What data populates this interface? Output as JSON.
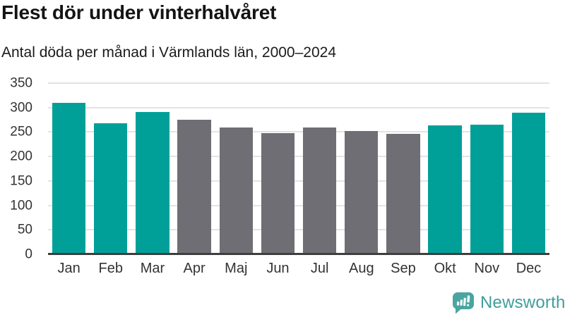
{
  "header": {
    "title": "Flest dör under vinterhalvåret",
    "subtitle": "Antal döda per månad i Värmlands län, 2000–2024"
  },
  "chart_data": {
    "type": "bar",
    "title": "Flest dör under vinterhalvåret",
    "subtitle": "Antal döda per månad i Värmlands län, 2000–2024",
    "categories": [
      "Jan",
      "Feb",
      "Mar",
      "Apr",
      "Maj",
      "Jun",
      "Jul",
      "Aug",
      "Sep",
      "Okt",
      "Nov",
      "Dec"
    ],
    "values": [
      310,
      268,
      291,
      275,
      259,
      248,
      259,
      252,
      246,
      264,
      265,
      290
    ],
    "bar_color_keys": [
      "teal",
      "teal",
      "teal",
      "gray",
      "gray",
      "gray",
      "gray",
      "gray",
      "gray",
      "teal",
      "teal",
      "teal"
    ],
    "palette": {
      "teal": "#00a099",
      "gray": "#6e6e74"
    },
    "xlabel": "",
    "ylabel": "",
    "ylim": [
      0,
      350
    ],
    "yticks": [
      0,
      50,
      100,
      150,
      200,
      250,
      300,
      350
    ],
    "grid": true,
    "gridline_color": "#e3e3e3",
    "axis_line_color": "#3e3e3e",
    "tick_label_color": "#333333",
    "legend": false
  },
  "branding": {
    "logo_text": "Newsworthy",
    "logo_text_color": "#3f9e9a",
    "logo_icon": "speech-bubble-bar-chart-icon",
    "logo_icon_color": "#4aa5a1"
  }
}
